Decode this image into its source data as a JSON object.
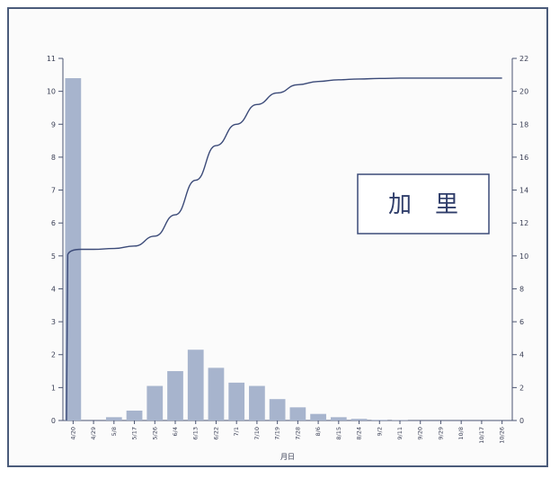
{
  "chart_data": {
    "type": "bar",
    "annotation": "加　里",
    "xlabel": "月日",
    "categories": [
      "4/20",
      "4/29",
      "5/8",
      "5/17",
      "5/26",
      "6/4",
      "6/13",
      "6/22",
      "7/1",
      "7/10",
      "7/19",
      "7/28",
      "8/6",
      "8/15",
      "8/24",
      "9/2",
      "9/11",
      "9/20",
      "9/29",
      "10/8",
      "10/17",
      "10/26"
    ],
    "left_axis": {
      "ylim": [
        0,
        11
      ],
      "ticks": [
        0,
        1,
        2,
        3,
        4,
        5,
        6,
        7,
        8,
        9,
        10,
        11
      ]
    },
    "right_axis": {
      "ylim": [
        0,
        22
      ],
      "ticks": [
        0,
        2,
        4,
        6,
        8,
        10,
        12,
        14,
        16,
        18,
        20,
        22
      ]
    },
    "series": [
      {
        "type": "bar",
        "axis": "left",
        "values": [
          10.4,
          0.0,
          0.1,
          0.3,
          1.05,
          1.5,
          2.15,
          1.6,
          1.15,
          1.05,
          0.65,
          0.4,
          0.2,
          0.1,
          0.05,
          0.02,
          0.01,
          0.0,
          0.0,
          0.0,
          0.0,
          0.0
        ]
      },
      {
        "type": "line",
        "axis": "right",
        "values": [
          10.4,
          10.4,
          10.45,
          10.6,
          11.2,
          12.5,
          14.6,
          16.7,
          18.0,
          19.2,
          19.9,
          20.4,
          20.6,
          20.7,
          20.75,
          20.78,
          20.8,
          20.8,
          20.8,
          20.8,
          20.8,
          20.8
        ]
      }
    ]
  }
}
